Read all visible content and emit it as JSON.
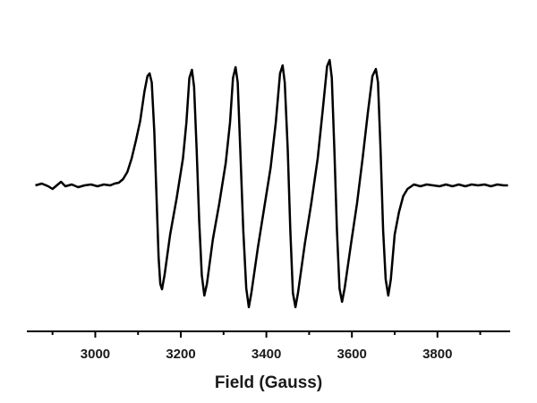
{
  "chart_data": {
    "type": "line",
    "x_label": "Field (Gauss)",
    "color": "#000000",
    "xlim": [
      2840,
      3970
    ],
    "xticks": [
      3000,
      3200,
      3400,
      3600,
      3800
    ],
    "xminor_ticks": [
      2900,
      3100,
      3300,
      3500,
      3700,
      3900
    ],
    "ylim": [
      -1.63,
      1.77
    ],
    "x": [
      2860,
      2875,
      2890,
      2900,
      2910,
      2920,
      2930,
      2945,
      2960,
      2975,
      2990,
      3005,
      3020,
      3035,
      3045,
      3055,
      3065,
      3075,
      3085,
      3095,
      3105,
      3115,
      3122,
      3127,
      3132,
      3138,
      3143,
      3148,
      3152,
      3156,
      3162,
      3175,
      3190,
      3205,
      3213,
      3220,
      3226,
      3231,
      3237,
      3243,
      3249,
      3255,
      3261,
      3275,
      3290,
      3305,
      3315,
      3322,
      3328,
      3333,
      3339,
      3346,
      3353,
      3359,
      3365,
      3380,
      3395,
      3410,
      3422,
      3432,
      3438,
      3443,
      3450,
      3456,
      3462,
      3468,
      3474,
      3490,
      3505,
      3520,
      3532,
      3542,
      3548,
      3553,
      3559,
      3565,
      3571,
      3577,
      3583,
      3598,
      3612,
      3625,
      3637,
      3648,
      3656,
      3661,
      3667,
      3673,
      3679,
      3685,
      3691,
      3700,
      3710,
      3720,
      3730,
      3745,
      3760,
      3775,
      3790,
      3805,
      3820,
      3835,
      3850,
      3865,
      3880,
      3895,
      3910,
      3925,
      3940,
      3955,
      3965
    ],
    "values": [
      0,
      0.02,
      -0.01,
      -0.04,
      0.0,
      0.04,
      -0.01,
      0.01,
      -0.02,
      0.0,
      0.01,
      -0.01,
      0.01,
      0.0,
      0.02,
      0.03,
      0.07,
      0.15,
      0.3,
      0.5,
      0.72,
      1.05,
      1.22,
      1.25,
      1.15,
      0.6,
      -0.1,
      -0.8,
      -1.1,
      -1.16,
      -1.0,
      -0.55,
      -0.15,
      0.3,
      0.7,
      1.2,
      1.29,
      1.1,
      0.4,
      -0.4,
      -1.0,
      -1.23,
      -1.1,
      -0.6,
      -0.2,
      0.25,
      0.7,
      1.2,
      1.32,
      1.15,
      0.4,
      -0.5,
      -1.15,
      -1.36,
      -1.2,
      -0.7,
      -0.25,
      0.2,
      0.7,
      1.25,
      1.34,
      1.15,
      0.4,
      -0.5,
      -1.2,
      -1.36,
      -1.2,
      -0.65,
      -0.2,
      0.3,
      0.85,
      1.33,
      1.4,
      1.2,
      0.4,
      -0.5,
      -1.15,
      -1.3,
      -1.15,
      -0.65,
      -0.2,
      0.3,
      0.8,
      1.22,
      1.3,
      1.15,
      0.4,
      -0.5,
      -1.05,
      -1.23,
      -1.05,
      -0.55,
      -0.3,
      -0.12,
      -0.04,
      0.01,
      -0.01,
      0.01,
      0.0,
      -0.01,
      0.01,
      -0.01,
      0.01,
      -0.01,
      0.01,
      0.0,
      0.01,
      -0.01,
      0.01,
      0.0,
      0.0
    ]
  }
}
